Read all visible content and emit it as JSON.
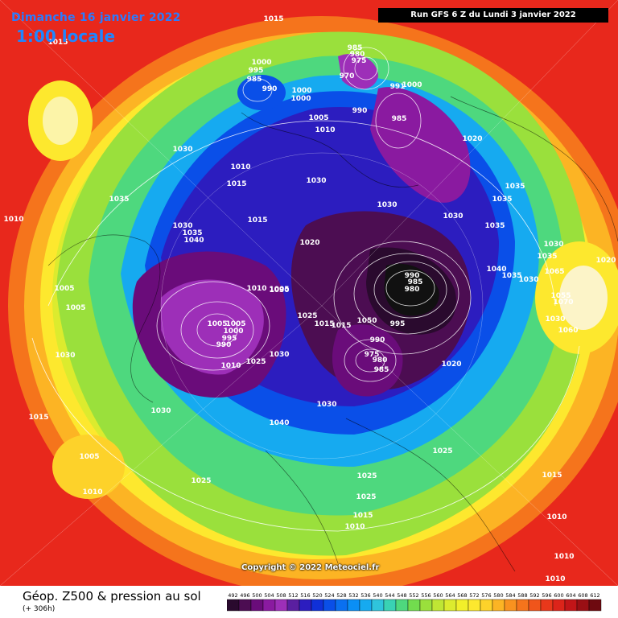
{
  "header": {
    "date": "Dimanche 16 janvier 2022",
    "local_time": "1:00 locale",
    "run": "Run GFS 6 Z du Lundi 3 janvier 2022"
  },
  "footer": {
    "title": "Géop. Z500 & pression au sol",
    "subtitle": "(+ 306h)",
    "copyright": "Copyright © 2022 Meteociel.fr"
  },
  "legend": {
    "values": [
      "492",
      "496",
      "500",
      "504",
      "508",
      "512",
      "516",
      "520",
      "524",
      "528",
      "532",
      "536",
      "540",
      "544",
      "548",
      "552",
      "556",
      "560",
      "564",
      "568",
      "572",
      "576",
      "580",
      "584",
      "588",
      "592",
      "596",
      "600",
      "604",
      "608",
      "612"
    ],
    "colors": [
      "#2a0a2e",
      "#4c0d52",
      "#6a0c7a",
      "#8a1aa0",
      "#9d2fb8",
      "#5a1fa0",
      "#2c1dbf",
      "#1030d8",
      "#0a4fe8",
      "#0a70f0",
      "#0a8ff5",
      "#16aaf0",
      "#2fc4dc",
      "#39d2b4",
      "#4ed87e",
      "#72dc4e",
      "#9ae03c",
      "#bfe634",
      "#dceb2e",
      "#f2ef2a",
      "#fde82e",
      "#fdd22a",
      "#fcb424",
      "#f9921f",
      "#f5741c",
      "#f0551b",
      "#e8381b",
      "#dc241a",
      "#c21518",
      "#9a0f14",
      "#6e0a10"
    ]
  },
  "isobars": [
    {
      "label": "1015"
    },
    {
      "label": "1015"
    },
    {
      "label": "1000"
    },
    {
      "label": "995"
    },
    {
      "label": "985"
    },
    {
      "label": "990"
    },
    {
      "label": "985"
    },
    {
      "label": "980"
    },
    {
      "label": "975"
    },
    {
      "label": "970"
    },
    {
      "label": "991"
    },
    {
      "label": "1000"
    },
    {
      "label": "1000"
    },
    {
      "label": "1000"
    },
    {
      "label": "990"
    },
    {
      "label": "985"
    },
    {
      "label": "1005"
    },
    {
      "label": "1010"
    },
    {
      "label": "1020"
    },
    {
      "label": "1030"
    },
    {
      "label": "1010"
    },
    {
      "label": "1015"
    },
    {
      "label": "1030"
    },
    {
      "label": "1035"
    },
    {
      "label": "1010"
    },
    {
      "label": "1030"
    },
    {
      "label": "1035"
    },
    {
      "label": "1040"
    },
    {
      "label": "1015"
    },
    {
      "label": "1030"
    },
    {
      "label": "1030"
    },
    {
      "label": "1035"
    },
    {
      "label": "1035"
    },
    {
      "label": "1035"
    },
    {
      "label": "1020"
    },
    {
      "label": "1030"
    },
    {
      "label": "1035"
    },
    {
      "label": "1040"
    },
    {
      "label": "1035"
    },
    {
      "label": "1030"
    },
    {
      "label": "1065"
    },
    {
      "label": "1020"
    },
    {
      "label": "990"
    },
    {
      "label": "985"
    },
    {
      "label": "980"
    },
    {
      "label": "1010"
    },
    {
      "label": "1005"
    },
    {
      "label": "1030"
    },
    {
      "label": "1005"
    },
    {
      "label": "1000"
    },
    {
      "label": "995"
    },
    {
      "label": "990"
    },
    {
      "label": "1025"
    },
    {
      "label": "1015"
    },
    {
      "label": "1015"
    },
    {
      "label": "1050"
    },
    {
      "label": "995"
    },
    {
      "label": "1070"
    },
    {
      "label": "1055"
    },
    {
      "label": "1060"
    },
    {
      "label": "1030"
    },
    {
      "label": "990"
    },
    {
      "label": "975"
    },
    {
      "label": "980"
    },
    {
      "label": "985"
    },
    {
      "label": "1020"
    },
    {
      "label": "1005"
    },
    {
      "label": "1005"
    },
    {
      "label": "1005"
    },
    {
      "label": "1010"
    },
    {
      "label": "1025"
    },
    {
      "label": "1030"
    },
    {
      "label": "1030"
    },
    {
      "label": "1030"
    },
    {
      "label": "1030"
    },
    {
      "label": "1015"
    },
    {
      "label": "1040"
    },
    {
      "label": "1025"
    },
    {
      "label": "1005"
    },
    {
      "label": "1025"
    },
    {
      "label": "1010"
    },
    {
      "label": "1025"
    },
    {
      "label": "1015"
    },
    {
      "label": "1015"
    },
    {
      "label": "1010"
    },
    {
      "label": "1010"
    },
    {
      "label": "1010"
    },
    {
      "label": "1010"
    },
    {
      "label": "1025"
    }
  ]
}
